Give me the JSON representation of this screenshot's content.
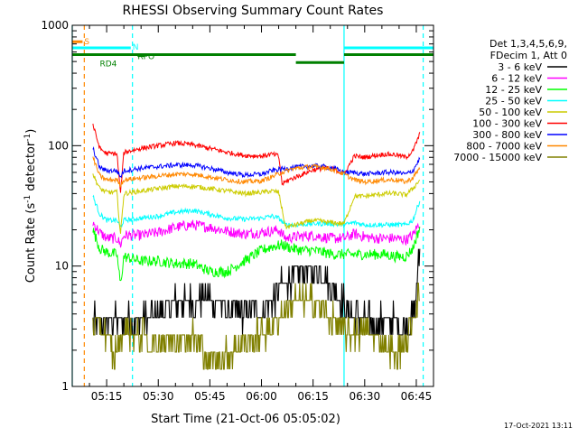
{
  "chart_data": {
    "type": "line",
    "title": "RHESSI Observing Summary Count Rates",
    "xlabel": "Start Time (21-Oct-06 05:05:02)",
    "ylabel_parts": [
      "Count Rate (s",
      "-1",
      " detector",
      "-1",
      ")"
    ],
    "yscale": "log",
    "ylim": [
      1,
      1000
    ],
    "xlim_minutes": [
      0,
      105
    ],
    "x_ticks": [
      {
        "label": "05:15",
        "t": 10
      },
      {
        "label": "05:30",
        "t": 25
      },
      {
        "label": "05:45",
        "t": 40
      },
      {
        "label": "06:00",
        "t": 55
      },
      {
        "label": "06:15",
        "t": 70
      },
      {
        "label": "06:30",
        "t": 85
      },
      {
        "label": "06:45",
        "t": 100
      }
    ],
    "y_ticks": [
      {
        "label": "1",
        "v": 1
      },
      {
        "label": "10",
        "v": 10
      },
      {
        "label": "100",
        "v": 100
      },
      {
        "label": "1000",
        "v": 1000
      }
    ],
    "legend_header": [
      "Det 1,3,4,5,6,9,",
      "FDecim 1, Att 0"
    ],
    "legend_position": "right",
    "series": [
      {
        "name": "3 - 6 keV",
        "color": "#000000",
        "points": [
          [
            6,
            3.5
          ],
          [
            9,
            3.5
          ],
          [
            12,
            3.5
          ],
          [
            13.5,
            3.5
          ],
          [
            15,
            3.5
          ],
          [
            20,
            3.5
          ],
          [
            25,
            4
          ],
          [
            30,
            5
          ],
          [
            35,
            5
          ],
          [
            40,
            5.5
          ],
          [
            45,
            4.5
          ],
          [
            50,
            4
          ],
          [
            55,
            4
          ],
          [
            58,
            5
          ],
          [
            61,
            7
          ],
          [
            64,
            8
          ],
          [
            67,
            9
          ],
          [
            70,
            9
          ],
          [
            73,
            8.5
          ],
          [
            76,
            6.5
          ],
          [
            79,
            5
          ],
          [
            82,
            4
          ],
          [
            85,
            3.5
          ],
          [
            88,
            3.5
          ],
          [
            91,
            3.5
          ],
          [
            94,
            3.5
          ],
          [
            97,
            3
          ],
          [
            99.5,
            4
          ],
          [
            100.5,
            10
          ],
          [
            101,
            14
          ]
        ]
      },
      {
        "name": "6 - 12 keV",
        "color": "#ff00ff",
        "points": [
          [
            6,
            23
          ],
          [
            8,
            19
          ],
          [
            10,
            17
          ],
          [
            13,
            17
          ],
          [
            14,
            15
          ],
          [
            15,
            18
          ],
          [
            20,
            18
          ],
          [
            25,
            19
          ],
          [
            30,
            21
          ],
          [
            35,
            22
          ],
          [
            40,
            21
          ],
          [
            45,
            19.5
          ],
          [
            50,
            18.5
          ],
          [
            55,
            19
          ],
          [
            58,
            19.5
          ],
          [
            60,
            20
          ],
          [
            62,
            17
          ],
          [
            65,
            17.5
          ],
          [
            70,
            18
          ],
          [
            75,
            17
          ],
          [
            79,
            17
          ],
          [
            82,
            18.5
          ],
          [
            85,
            17.5
          ],
          [
            88,
            17
          ],
          [
            91,
            17
          ],
          [
            94,
            17
          ],
          [
            97,
            16.5
          ],
          [
            99,
            18
          ],
          [
            101,
            23
          ]
        ]
      },
      {
        "name": "12 - 25 keV",
        "color": "#00ff00",
        "points": [
          [
            6,
            20
          ],
          [
            8,
            14
          ],
          [
            10,
            13
          ],
          [
            13,
            12.5
          ],
          [
            14,
            7
          ],
          [
            15,
            12
          ],
          [
            20,
            11
          ],
          [
            25,
            11
          ],
          [
            30,
            10.5
          ],
          [
            35,
            10.5
          ],
          [
            40,
            9
          ],
          [
            45,
            9
          ],
          [
            50,
            11
          ],
          [
            55,
            13.5
          ],
          [
            58,
            14.5
          ],
          [
            61,
            15
          ],
          [
            64,
            14
          ],
          [
            67,
            13.5
          ],
          [
            70,
            13.5
          ],
          [
            73,
            13
          ],
          [
            76,
            12.5
          ],
          [
            79,
            12.5
          ],
          [
            82,
            12.5
          ],
          [
            85,
            12.5
          ],
          [
            88,
            12.5
          ],
          [
            91,
            12.5
          ],
          [
            94,
            12
          ],
          [
            97,
            12
          ],
          [
            99,
            14
          ],
          [
            101,
            21
          ]
        ]
      },
      {
        "name": "25 - 50 keV",
        "color": "#00ffff",
        "points": [
          [
            6,
            38
          ],
          [
            8,
            27
          ],
          [
            10,
            24
          ],
          [
            13,
            24
          ],
          [
            14,
            21
          ],
          [
            15,
            24
          ],
          [
            20,
            25
          ],
          [
            25,
            26
          ],
          [
            30,
            28
          ],
          [
            35,
            29
          ],
          [
            40,
            27
          ],
          [
            45,
            25
          ],
          [
            50,
            24.5
          ],
          [
            55,
            25
          ],
          [
            58,
            26
          ],
          [
            60,
            25
          ],
          [
            62,
            22
          ],
          [
            65,
            22
          ],
          [
            70,
            22.5
          ],
          [
            75,
            22.5
          ],
          [
            79,
            22
          ],
          [
            82,
            23
          ],
          [
            85,
            22
          ],
          [
            88,
            22
          ],
          [
            91,
            22
          ],
          [
            94,
            22
          ],
          [
            97,
            22
          ],
          [
            99,
            24
          ],
          [
            101,
            35
          ]
        ]
      },
      {
        "name": "50 - 100 keV",
        "color": "#cccc00",
        "points": [
          [
            6,
            58
          ],
          [
            8,
            44
          ],
          [
            10,
            41
          ],
          [
            13,
            41
          ],
          [
            14,
            18
          ],
          [
            15,
            40
          ],
          [
            20,
            42
          ],
          [
            25,
            44
          ],
          [
            30,
            46
          ],
          [
            35,
            46
          ],
          [
            40,
            44
          ],
          [
            45,
            42
          ],
          [
            50,
            40
          ],
          [
            55,
            41
          ],
          [
            58,
            42
          ],
          [
            60,
            41
          ],
          [
            62,
            21
          ],
          [
            65,
            22
          ],
          [
            70,
            24
          ],
          [
            75,
            23
          ],
          [
            79,
            22.5
          ],
          [
            82,
            38
          ],
          [
            85,
            38
          ],
          [
            88,
            39
          ],
          [
            91,
            40
          ],
          [
            94,
            40
          ],
          [
            97,
            39
          ],
          [
            99,
            44
          ],
          [
            101,
            52
          ]
        ]
      },
      {
        "name": "100 - 300 keV",
        "color": "#ff0000",
        "points": [
          [
            6,
            150
          ],
          [
            8,
            95
          ],
          [
            10,
            86
          ],
          [
            13,
            86
          ],
          [
            14,
            40
          ],
          [
            15,
            88
          ],
          [
            20,
            95
          ],
          [
            25,
            100
          ],
          [
            30,
            105
          ],
          [
            35,
            102
          ],
          [
            40,
            95
          ],
          [
            45,
            88
          ],
          [
            50,
            83
          ],
          [
            55,
            82
          ],
          [
            58,
            85
          ],
          [
            60,
            82
          ],
          [
            61,
            48
          ],
          [
            63,
            52
          ],
          [
            67,
            58
          ],
          [
            70,
            63
          ],
          [
            73,
            65
          ],
          [
            76,
            64
          ],
          [
            79,
            58
          ],
          [
            82,
            82
          ],
          [
            85,
            80
          ],
          [
            88,
            83
          ],
          [
            91,
            85
          ],
          [
            94,
            84
          ],
          [
            97,
            80
          ],
          [
            99,
            90
          ],
          [
            101,
            125
          ]
        ]
      },
      {
        "name": "300 - 800 keV",
        "color": "#0000ff",
        "points": [
          [
            6,
            95
          ],
          [
            8,
            66
          ],
          [
            10,
            62
          ],
          [
            13,
            62
          ],
          [
            14,
            55
          ],
          [
            15,
            62
          ],
          [
            20,
            65
          ],
          [
            25,
            67
          ],
          [
            30,
            69
          ],
          [
            35,
            69
          ],
          [
            40,
            65
          ],
          [
            45,
            60
          ],
          [
            50,
            57
          ],
          [
            55,
            58
          ],
          [
            58,
            62
          ],
          [
            61,
            64
          ],
          [
            64,
            66
          ],
          [
            67,
            67
          ],
          [
            70,
            68
          ],
          [
            73,
            67
          ],
          [
            76,
            65
          ],
          [
            79,
            60
          ],
          [
            82,
            60
          ],
          [
            85,
            58
          ],
          [
            88,
            59
          ],
          [
            91,
            60
          ],
          [
            94,
            60
          ],
          [
            97,
            58
          ],
          [
            99,
            62
          ],
          [
            101,
            78
          ]
        ]
      },
      {
        "name": "800 - 7000 keV",
        "color": "#ff8800",
        "points": [
          [
            6,
            80
          ],
          [
            8,
            56
          ],
          [
            10,
            52
          ],
          [
            13,
            52
          ],
          [
            14,
            47
          ],
          [
            15,
            52
          ],
          [
            20,
            54
          ],
          [
            25,
            56
          ],
          [
            30,
            58
          ],
          [
            35,
            58
          ],
          [
            40,
            55
          ],
          [
            45,
            52
          ],
          [
            50,
            50
          ],
          [
            55,
            51
          ],
          [
            58,
            55
          ],
          [
            61,
            60
          ],
          [
            64,
            64
          ],
          [
            67,
            66
          ],
          [
            70,
            67
          ],
          [
            73,
            66
          ],
          [
            76,
            63
          ],
          [
            79,
            58
          ],
          [
            82,
            52
          ],
          [
            85,
            50
          ],
          [
            88,
            51
          ],
          [
            91,
            52
          ],
          [
            94,
            52
          ],
          [
            97,
            50
          ],
          [
            99,
            54
          ],
          [
            101,
            65
          ]
        ]
      },
      {
        "name": "7000 - 15000 keV",
        "color": "#808000",
        "points": [
          [
            6,
            3.2
          ],
          [
            9,
            3.0
          ],
          [
            12,
            1.8
          ],
          [
            13.5,
            2.2
          ],
          [
            15,
            3.0
          ],
          [
            20,
            2.6
          ],
          [
            25,
            2.2
          ],
          [
            30,
            2.6
          ],
          [
            35,
            2.6
          ],
          [
            40,
            1.6
          ],
          [
            45,
            1.8
          ],
          [
            50,
            2.3
          ],
          [
            55,
            2.7
          ],
          [
            58,
            3.2
          ],
          [
            61,
            4.2
          ],
          [
            64,
            5
          ],
          [
            67,
            5.2
          ],
          [
            70,
            5
          ],
          [
            73,
            4.2
          ],
          [
            76,
            3.5
          ],
          [
            79,
            2.8
          ],
          [
            82,
            2.8
          ],
          [
            85,
            2.8
          ],
          [
            88,
            2.7
          ],
          [
            91,
            2.2
          ],
          [
            94,
            1.8
          ],
          [
            97,
            2.2
          ],
          [
            99,
            3.5
          ],
          [
            101,
            6.5
          ]
        ]
      }
    ],
    "state_bars": {
      "S": {
        "label": "S",
        "color": "#ff8800",
        "t0": 0,
        "t1": 3,
        "v": 730
      },
      "N": {
        "label": "N",
        "color": "#00ffff",
        "segments": [
          [
            0,
            17
          ],
          [
            79,
            105
          ]
        ],
        "v": 650
      },
      "SAA": {
        "label": "",
        "color": "#008000",
        "segments": [
          [
            0,
            65
          ],
          [
            79,
            105
          ]
        ],
        "v": 570
      },
      "RD4": {
        "label": "RD4",
        "color": "#008000",
        "t0": 65,
        "t1": 79,
        "v": 490,
        "label_t": 8
      },
      "RPO": {
        "label": "RPO",
        "color": "#008000",
        "t0": 19,
        "t1": 21,
        "v": 560
      }
    },
    "vlines": [
      {
        "t": 0,
        "color": "#00ffff",
        "style": "solid"
      },
      {
        "t": 3.5,
        "color": "#ff8800",
        "style": "dashed"
      },
      {
        "t": 17.5,
        "color": "#00ffff",
        "style": "dashed"
      },
      {
        "t": 79,
        "color": "#00ffff",
        "style": "solid"
      },
      {
        "t": 102,
        "color": "#00ffff",
        "style": "dashed"
      }
    ],
    "footer_timestamp": "17-Oct-2021 13:11"
  }
}
